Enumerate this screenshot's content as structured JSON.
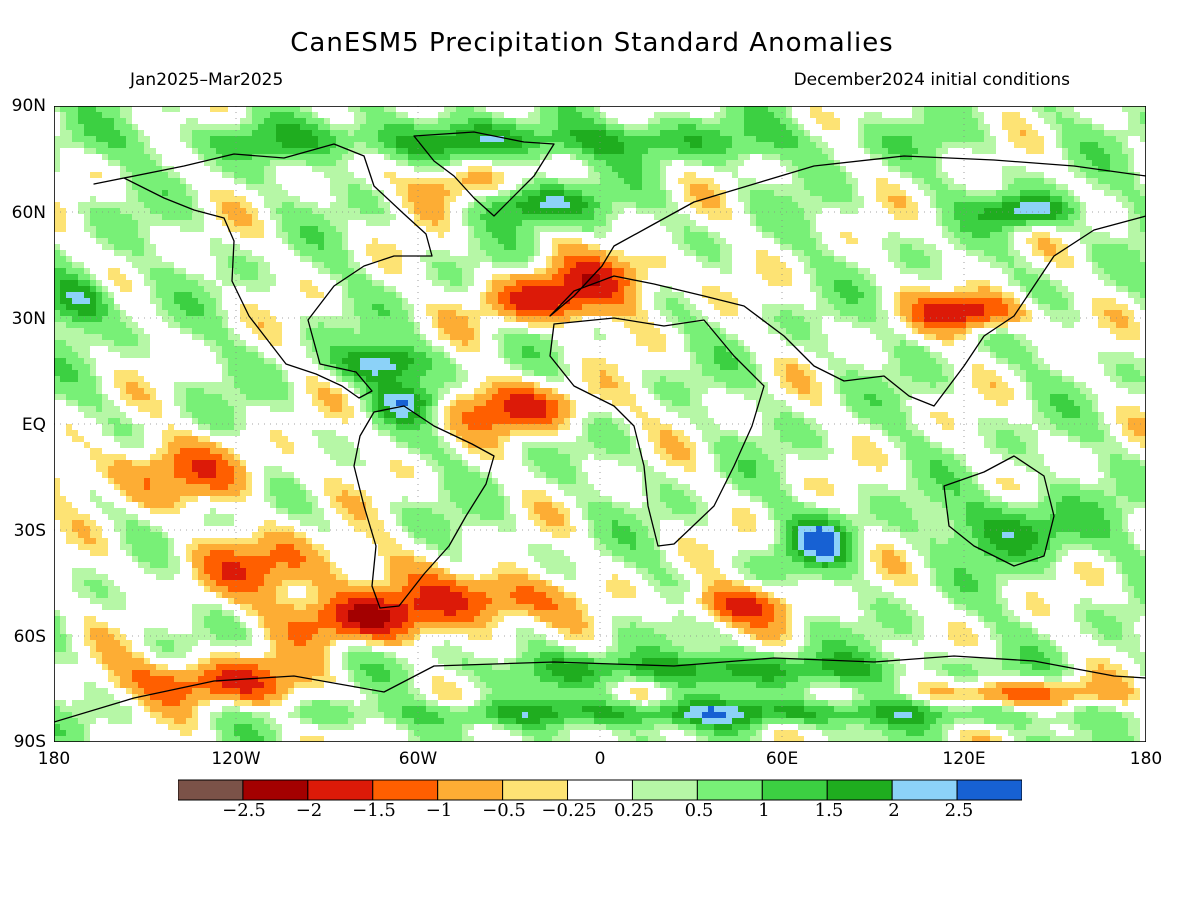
{
  "title": "CanESM5 Precipitation Standard Anomalies",
  "period": "Jan2025–Mar2025",
  "init": "December2024 initial conditions",
  "lat_labels": [
    "90N",
    "60N",
    "30N",
    "EQ",
    "30S",
    "60S",
    "90S"
  ],
  "lon_labels": [
    "180",
    "120W",
    "60W",
    "0",
    "60E",
    "120E",
    "180"
  ],
  "colorbar": {
    "colors": [
      "#7b5248",
      "#a30000",
      "#dc1a08",
      "#ff5f00",
      "#fdad34",
      "#fde374",
      "#ffffff",
      "#b6f7a6",
      "#78f077",
      "#3cd042",
      "#1fad1f",
      "#8cd2f8",
      "#1761d3"
    ],
    "labels": [
      "−2.5",
      "−2",
      "−1.5",
      "−1",
      "−0.5",
      "−0.25",
      "0.25",
      "0.5",
      "1",
      "1.5",
      "2",
      "2.5"
    ]
  }
}
